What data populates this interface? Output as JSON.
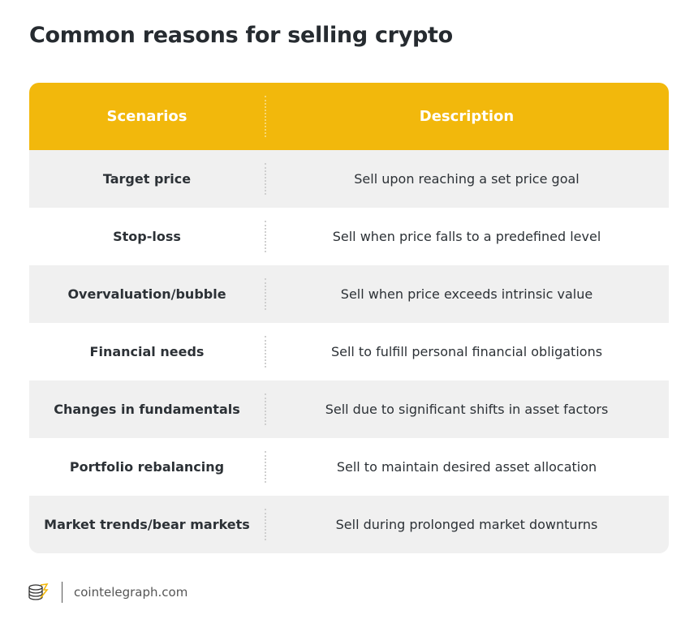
{
  "header": {
    "title": "Common reasons for selling crypto"
  },
  "table": {
    "columns": [
      "Scenarios",
      "Description"
    ],
    "rows": [
      [
        "Target price",
        "Sell upon reaching a set price goal"
      ],
      [
        "Stop-loss",
        "Sell when price falls to a predefined level"
      ],
      [
        "Overvaluation/bubble",
        "Sell when price exceeds intrinsic value"
      ],
      [
        "Financial needs",
        "Sell to fulfill personal financial obligations"
      ],
      [
        "Changes in fundamentals",
        "Sell due to significant shifts in asset factors"
      ],
      [
        "Portfolio rebalancing",
        "Sell to maintain desired asset allocation"
      ],
      [
        "Market trends/bear markets",
        "Sell during prolonged market downturns"
      ]
    ]
  },
  "footer": {
    "source": "cointelegraph.com"
  }
}
